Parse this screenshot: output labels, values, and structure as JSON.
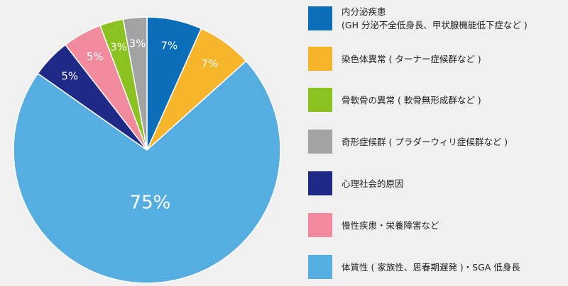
{
  "chart_data": {
    "type": "pie",
    "start_angle_deg": 0,
    "direction": "clockwise",
    "slices": [
      {
        "label": "内分泌疾患\n(GH 分泌不全低身長、甲状腺機能低下症など )",
        "value": 7,
        "value_label": "7%",
        "color": "#0a6fb8",
        "label_color": "#ffffff"
      },
      {
        "label": "染色体異常 ( ターナー症候群など )",
        "value": 7,
        "value_label": "7%",
        "color": "#f7b52c",
        "label_color": "#333333"
      },
      {
        "label": "体質性 ( 家族性、思春期遅発 )・SGA 低身長",
        "value": 75,
        "value_label": "75%",
        "color": "#56aee0",
        "label_color": "#ffffff"
      },
      {
        "label": "心理社会的原因",
        "value": 5,
        "value_label": "5%",
        "color": "#1e2a85",
        "label_color": "#ffffff"
      },
      {
        "label": "慢性疾患・栄養障害など",
        "value": 5,
        "value_label": "5%",
        "color": "#f08a9c",
        "label_color": "#ffffff"
      },
      {
        "label": "骨軟骨の異常 ( 軟骨無形成群など )",
        "value": 3,
        "value_label": "3%",
        "color": "#8cc21f",
        "label_color": "#333333"
      },
      {
        "label": "奇形症候群 ( プラダーウィリ症候群など )",
        "value": 3,
        "value_label": "3%",
        "color": "#a3a3a3",
        "label_color": "#333333"
      }
    ]
  },
  "legend": [
    {
      "text": "内分泌疾患\n(GH 分泌不全低身長、甲状腺機能低下症など )",
      "color": "#0a6fb8"
    },
    {
      "text": "染色体異常 ( ターナー症候群など )",
      "color": "#f7b52c"
    },
    {
      "text": "骨軟骨の異常 ( 軟骨無形成群など )",
      "color": "#8cc21f"
    },
    {
      "text": "奇形症候群 ( プラダーウィリ症候群など )",
      "color": "#a3a3a3"
    },
    {
      "text": "心理社会的原因",
      "color": "#1e2a85"
    },
    {
      "text": "慢性疾患・栄養障害など",
      "color": "#f08a9c"
    },
    {
      "text": "体質性 ( 家族性、思春期遅発 )・SGA 低身長",
      "color": "#56aee0"
    }
  ]
}
